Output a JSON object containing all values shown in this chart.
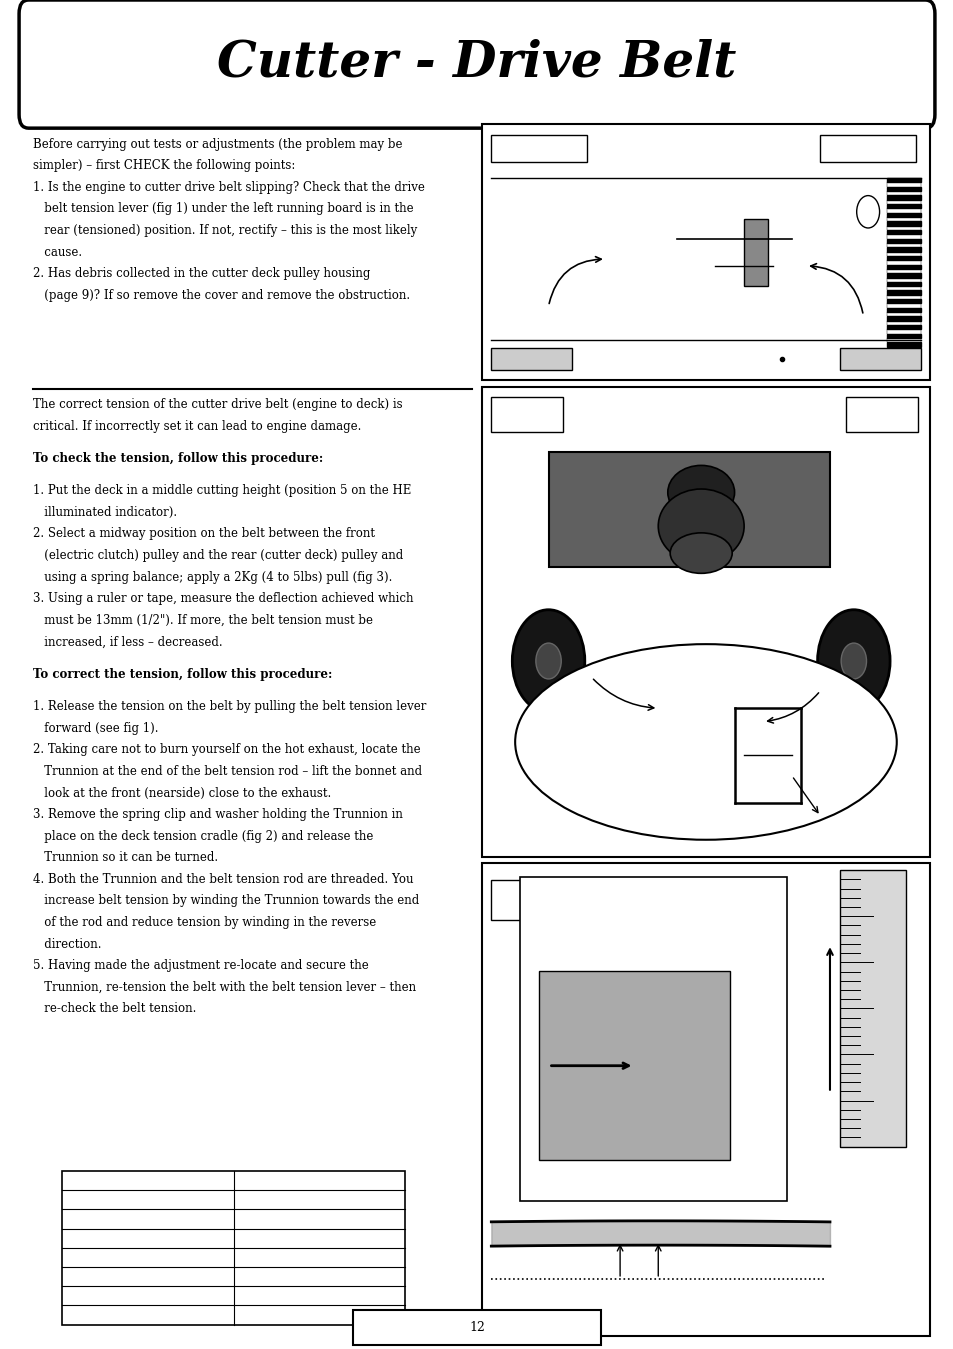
{
  "title": "Cutter - Drive Belt",
  "bg_color": "#ffffff",
  "border_color": "#000000",
  "text_color": "#000000",
  "section1_text": [
    "Before carrying out tests or adjustments (the problem may be",
    "simpler) – first CHECK the following points:",
    "1. Is the engine to cutter drive belt slipping? Check that the drive",
    "   belt tension lever (fig 1) under the left running board is in the",
    "   rear (tensioned) position. If not, rectify – this is the most likely",
    "   cause.",
    "2. Has debris collected in the cutter deck pulley housing",
    "   (page 9)? If so remove the cover and remove the obstruction."
  ],
  "section2_intro": [
    "The correct tension of the cutter drive belt (engine to deck) is",
    "critical. If incorrectly set it can lead to engine damage."
  ],
  "check_heading": "To check the tension, follow this procedure:",
  "check_steps": [
    "1. Put the deck in a middle cutting height (position 5 on the HE",
    "   illuminated indicator).",
    "2. Select a midway position on the belt between the front",
    "   (electric clutch) pulley and the rear (cutter deck) pulley and",
    "   using a spring balance; apply a 2Kg (4 to 5lbs) pull (fig 3).",
    "3. Using a ruler or tape, measure the deflection achieved which",
    "   must be 13mm (1/2\"). If more, the belt tension must be",
    "   increased, if less – decreased."
  ],
  "correct_heading": "To correct the tension, follow this procedure:",
  "correct_steps": [
    "1. Release the tension on the belt by pulling the belt tension lever",
    "   forward (see fig 1).",
    "2. Taking care not to burn yourself on the hot exhaust, locate the",
    "   Trunnion at the end of the belt tension rod – lift the bonnet and",
    "   look at the front (nearside) close to the exhaust.",
    "3. Remove the spring clip and washer holding the Trunnion in",
    "   place on the deck tension cradle (fig 2) and release the",
    "   Trunnion so it can be turned.",
    "4. Both the Trunnion and the belt tension rod are threaded. You",
    "   increase belt tension by winding the Trunnion towards the end",
    "   of the rod and reduce tension by winding in the reverse",
    "   direction.",
    "5. Having made the adjustment re-locate and secure the",
    "   Trunnion, re-tension the belt with the belt tension lever – then",
    "   re-check the belt tension."
  ],
  "page_number": "12"
}
